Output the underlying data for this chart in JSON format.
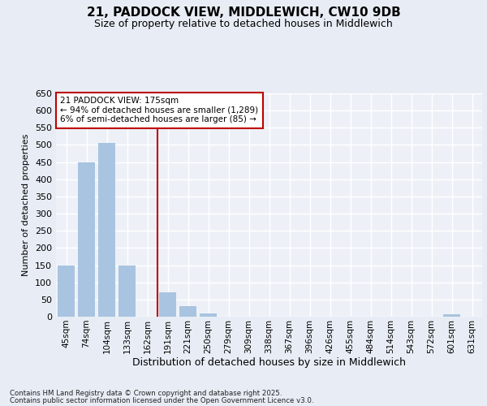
{
  "title_line1": "21, PADDOCK VIEW, MIDDLEWICH, CW10 9DB",
  "title_line2": "Size of property relative to detached houses in Middlewich",
  "xlabel": "Distribution of detached houses by size in Middlewich",
  "ylabel": "Number of detached properties",
  "categories": [
    "45sqm",
    "74sqm",
    "104sqm",
    "133sqm",
    "162sqm",
    "191sqm",
    "221sqm",
    "250sqm",
    "279sqm",
    "309sqm",
    "338sqm",
    "367sqm",
    "396sqm",
    "426sqm",
    "455sqm",
    "484sqm",
    "514sqm",
    "543sqm",
    "572sqm",
    "601sqm",
    "631sqm"
  ],
  "values": [
    150,
    450,
    505,
    150,
    0,
    70,
    30,
    10,
    0,
    0,
    0,
    0,
    0,
    0,
    0,
    0,
    0,
    0,
    0,
    8,
    0
  ],
  "bar_color_default": "#a8c4e0",
  "bar_color_highlight": "#c00000",
  "vline_index": 4.5,
  "annotation_box_text": "21 PADDOCK VIEW: 175sqm\n← 94% of detached houses are smaller (1,289)\n6% of semi-detached houses are larger (85) →",
  "ylim": [
    0,
    650
  ],
  "yticks": [
    0,
    50,
    100,
    150,
    200,
    250,
    300,
    350,
    400,
    450,
    500,
    550,
    600,
    650
  ],
  "footer_line1": "Contains HM Land Registry data © Crown copyright and database right 2025.",
  "footer_line2": "Contains public sector information licensed under the Open Government Licence v3.0.",
  "bg_color": "#e8edf5",
  "plot_bg_color": "#edf1f7",
  "grid_color": "#ffffff",
  "title_fontsize": 11,
  "subtitle_fontsize": 9,
  "ylabel_fontsize": 8,
  "xlabel_fontsize": 9,
  "tick_fontsize": 8,
  "xtick_fontsize": 7.5
}
